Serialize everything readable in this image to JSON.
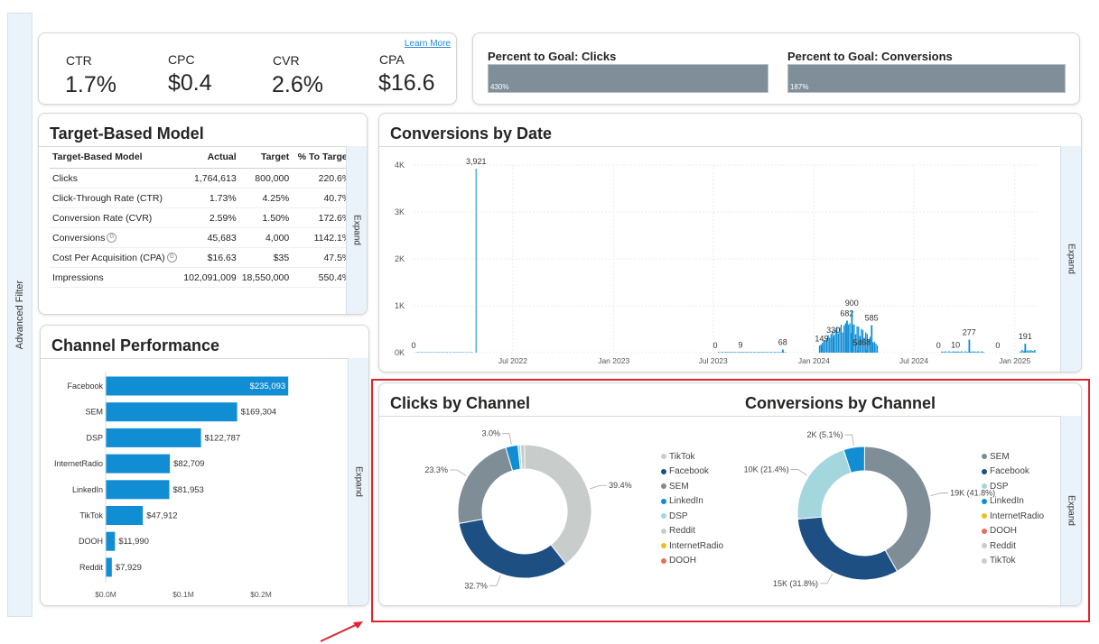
{
  "side_filter": {
    "label": "Advanced Filter"
  },
  "kpis": {
    "learn_more": "Learn More",
    "items": [
      {
        "label": "CTR",
        "value": "1.7%"
      },
      {
        "label": "CPC",
        "value": "$0.4"
      },
      {
        "label": "CVR",
        "value": "2.6%"
      },
      {
        "label": "CPA",
        "value": "$16.6"
      }
    ]
  },
  "goals": {
    "items": [
      {
        "title": "Percent to Goal: Clicks",
        "label": "430%",
        "percent": 430
      },
      {
        "title": "Percent to Goal: Conversions",
        "label": "187%",
        "percent": 187
      }
    ],
    "bar_color": "#7f8e98"
  },
  "target_model": {
    "title": "Target-Based Model",
    "expand_label": "Expand",
    "columns": [
      "Target-Based Model",
      "Actual",
      "Target",
      "% To Target"
    ],
    "rows": [
      {
        "name": "Clicks",
        "actual": "1,764,613",
        "target": "800,000",
        "pct": "220.6%",
        "info": false
      },
      {
        "name": "Click-Through Rate (CTR)",
        "actual": "1.73%",
        "target": "4.25%",
        "pct": "40.7%",
        "info": false
      },
      {
        "name": "Conversion Rate (CVR)",
        "actual": "2.59%",
        "target": "1.50%",
        "pct": "172.6%",
        "info": false
      },
      {
        "name": "Conversions",
        "actual": "45,683",
        "target": "4,000",
        "pct": "1142.1%",
        "info": true
      },
      {
        "name": "Cost Per Acquisition (CPA)",
        "actual": "$16.63",
        "target": "$35",
        "pct": "47.5%",
        "info": true
      },
      {
        "name": "Impressions",
        "actual": "102,091,009",
        "target": "18,550,000",
        "pct": "550.4%",
        "info": false
      }
    ],
    "info_glyph": "G"
  },
  "channel_performance": {
    "title": "Channel Performance",
    "expand_label": "Expand",
    "axis_ticks": [
      "$0.0M",
      "$0.1M",
      "$0.2M"
    ]
  },
  "conversions_by_date": {
    "title": "Conversions by Date",
    "expand_label": "Expand"
  },
  "channel_donuts": {
    "expand_label": "Expand",
    "clicks_title": "Clicks by Channel",
    "conversions_title": "Conversions by Channel",
    "clicks_legend": [
      "TikTok",
      "Facebook",
      "SEM",
      "LinkedIn",
      "DSP",
      "Reddit",
      "InternetRadio",
      "DOOH"
    ],
    "conversions_legend": [
      "SEM",
      "Facebook",
      "DSP",
      "LinkedIn",
      "InternetRadio",
      "DOOH",
      "Reddit",
      "TikTok"
    ]
  },
  "colors": {
    "TikTok": "#c8cdcb",
    "Facebook": "#1e4f82",
    "SEM": "#7f8d96",
    "LinkedIn": "#118dd4",
    "DSP": "#a4d6de",
    "Reddit": "#c8cdcb",
    "InternetRadio": "#e8c21a",
    "DOOH": "#e56f5b",
    "bar_blue": "#118dd4",
    "highlight": "#e0232f"
  },
  "chart_data": [
    {
      "type": "bar",
      "orientation": "horizontal",
      "title": "Channel Performance",
      "categories": [
        "Facebook",
        "SEM",
        "DSP",
        "InternetRadio",
        "LinkedIn",
        "TikTok",
        "DOOH",
        "Reddit"
      ],
      "values": [
        235093,
        169304,
        122787,
        82709,
        81953,
        47912,
        11990,
        7929
      ],
      "labels": [
        "$235,093",
        "$169,304",
        "$122,787",
        "$82,709",
        "$81,953",
        "$47,912",
        "$11,990",
        "$7,929"
      ],
      "xlim": [
        0,
        250000
      ],
      "xticks": [
        "$0.0M",
        "$0.1M",
        "$0.2M"
      ]
    },
    {
      "type": "bar",
      "title": "Conversions by Date",
      "yticks": [
        "0K",
        "1K",
        "2K",
        "3K",
        "4K"
      ],
      "ylim": [
        0,
        4000
      ],
      "xticks": [
        "Jul 2022",
        "Jan 2023",
        "Jul 2023",
        "Jan 2024",
        "Jul 2024",
        "Jan 2025"
      ],
      "xlim": [
        "2022-01-01",
        "2025-02-10"
      ],
      "annotations": [
        {
          "x": "2022-01-01",
          "value": 0,
          "label": "0"
        },
        {
          "x": "2022-04-25",
          "value": 3921,
          "label": "3,921"
        },
        {
          "x": "2023-07-05",
          "value": 0,
          "label": "0"
        },
        {
          "x": "2023-08-20",
          "value": 9,
          "label": "9"
        },
        {
          "x": "2023-11-05",
          "value": 68,
          "label": "68"
        },
        {
          "x": "2024-01-15",
          "value": 149,
          "label": "149"
        },
        {
          "x": "2024-02-05",
          "value": 330,
          "label": "330"
        },
        {
          "x": "2024-03-01",
          "value": 682,
          "label": "682"
        },
        {
          "x": "2024-03-10",
          "value": 900,
          "label": "900"
        },
        {
          "x": "2024-04-15",
          "value": 585,
          "label": "585"
        },
        {
          "x": "2024-03-20",
          "value": 54,
          "label": "54"
        },
        {
          "x": "2024-04-05",
          "value": 68,
          "label": "68"
        },
        {
          "x": "2024-08-15",
          "value": 0,
          "label": "0"
        },
        {
          "x": "2024-09-15",
          "value": 10,
          "label": "10"
        },
        {
          "x": "2024-10-10",
          "value": 277,
          "label": "277"
        },
        {
          "x": "2024-12-01",
          "value": 0,
          "label": "0"
        },
        {
          "x": "2025-01-20",
          "value": 191,
          "label": "191"
        }
      ]
    },
    {
      "type": "pie",
      "title": "Clicks by Channel",
      "slices": [
        {
          "name": "TikTok",
          "percent": 39.4,
          "label": "39.4%"
        },
        {
          "name": "Facebook",
          "percent": 32.7,
          "label": "32.7%"
        },
        {
          "name": "SEM",
          "percent": 23.3,
          "label": "23.3%"
        },
        {
          "name": "LinkedIn",
          "percent": 3.0,
          "label": "3.0%"
        },
        {
          "name": "DSP",
          "percent": 0.6,
          "label": ""
        },
        {
          "name": "Reddit",
          "percent": 1.0,
          "label": ""
        }
      ]
    },
    {
      "type": "pie",
      "title": "Conversions by Channel",
      "slices": [
        {
          "name": "SEM",
          "percent": 41.8,
          "label": "19K (41.8%)"
        },
        {
          "name": "Facebook",
          "percent": 31.8,
          "label": "15K (31.8%)"
        },
        {
          "name": "DSP",
          "percent": 21.4,
          "label": "10K (21.4%)"
        },
        {
          "name": "LinkedIn",
          "percent": 5.1,
          "label": "2K (5.1%)"
        }
      ]
    }
  ]
}
